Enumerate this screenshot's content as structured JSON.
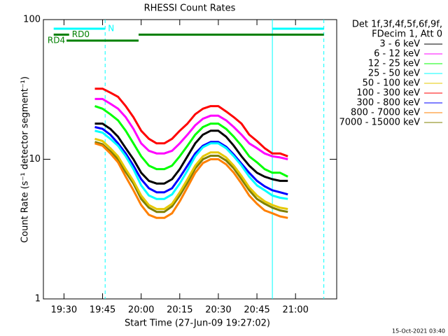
{
  "chart_data": {
    "type": "line",
    "title": "RHESSI Count Rates",
    "xlabel": "Start Time (27-Jun-09 19:27:02)",
    "ylabel": "Count Rate (s⁻¹ detector segment⁻¹)",
    "legend_header": [
      "Det 1f,3f,4f,5f,6f,9f,",
      "FDecim 1, Att 0"
    ],
    "footer": "15-Oct-2021 03:40",
    "log_y": true,
    "grid": false,
    "legend": "right",
    "xlim": [
      "19:22",
      "21:16"
    ],
    "xticks": [
      "19:30",
      "19:45",
      "20:00",
      "20:15",
      "20:30",
      "20:45",
      "21:00"
    ],
    "ylim": [
      1,
      100
    ],
    "yticks": [
      1,
      10,
      100
    ],
    "x": [
      "19:42",
      "19:45",
      "19:48",
      "19:51",
      "19:54",
      "19:57",
      "20:00",
      "20:03",
      "20:06",
      "20:09",
      "20:12",
      "20:15",
      "20:18",
      "20:21",
      "20:24",
      "20:27",
      "20:30",
      "20:33",
      "20:36",
      "20:39",
      "20:42",
      "20:45",
      "20:48",
      "20:51",
      "20:54",
      "20:57"
    ],
    "series": [
      {
        "name": "3 - 6 keV",
        "color": "#000000",
        "values": [
          18,
          18,
          16.5,
          14.5,
          12,
          10,
          8,
          7,
          6.7,
          6.7,
          7.2,
          8.5,
          10.5,
          13,
          15,
          16,
          16,
          14.5,
          12.5,
          10.5,
          9,
          8,
          7.5,
          7.2,
          7,
          7
        ]
      },
      {
        "name": "6 - 12 keV",
        "color": "#ff00ff",
        "values": [
          27,
          27,
          25,
          23,
          20,
          16.5,
          13,
          11.5,
          11,
          11,
          11.5,
          13,
          15,
          17.5,
          19.5,
          20.5,
          20.5,
          19,
          17,
          15,
          13,
          12,
          11,
          10.5,
          10.3,
          10
        ]
      },
      {
        "name": "12 - 25 keV",
        "color": "#00ff00",
        "values": [
          24,
          23,
          21,
          19,
          16,
          13,
          10.5,
          9,
          8.5,
          8.5,
          9,
          10.5,
          12.5,
          15,
          17,
          18,
          18,
          16.5,
          14.5,
          12.5,
          10.5,
          9.5,
          8.5,
          8,
          8,
          7.5
        ]
      },
      {
        "name": "25 - 50 keV",
        "color": "#00ffff",
        "values": [
          16,
          15.5,
          14,
          12.5,
          10.5,
          8.5,
          6.5,
          5.5,
          5.2,
          5.2,
          5.6,
          6.7,
          8.3,
          10.5,
          12.2,
          13,
          13,
          12,
          10.5,
          9,
          7.5,
          6.5,
          6,
          5.5,
          5.3,
          5.2
        ]
      },
      {
        "name": "50 - 100 keV",
        "color": "#e6c800",
        "values": [
          14,
          13.5,
          12,
          10.5,
          8.5,
          7,
          5.5,
          4.7,
          4.4,
          4.4,
          4.8,
          5.8,
          7.2,
          9,
          10.5,
          11.2,
          11.2,
          10.3,
          9,
          7.6,
          6.3,
          5.5,
          5,
          4.7,
          4.5,
          4.4
        ]
      },
      {
        "name": "100 - 300 keV",
        "color": "#ff0000",
        "values": [
          32,
          32,
          30,
          28,
          24,
          20,
          16,
          14,
          13,
          13,
          14,
          16,
          18,
          21,
          23,
          24,
          24,
          22,
          20,
          18,
          15,
          13.5,
          12,
          11,
          11,
          10.5
        ]
      },
      {
        "name": "300 - 800 keV",
        "color": "#0000ff",
        "values": [
          17,
          16.5,
          15,
          13,
          11,
          9,
          7.2,
          6.2,
          5.8,
          5.8,
          6.2,
          7.4,
          9,
          11,
          12.5,
          13.3,
          13.3,
          12.3,
          10.8,
          9.3,
          8,
          7,
          6.4,
          6,
          5.8,
          5.6
        ]
      },
      {
        "name": "800 - 7000 keV",
        "color": "#ff8000",
        "values": [
          13,
          12.5,
          11,
          9.5,
          7.5,
          6,
          4.7,
          4,
          3.8,
          3.8,
          4.1,
          5,
          6.3,
          8,
          9.4,
          10,
          10,
          9.2,
          8,
          6.7,
          5.5,
          4.8,
          4.3,
          4.1,
          3.9,
          3.8
        ]
      },
      {
        "name": "7000 - 15000 keV",
        "color": "#808000",
        "values": [
          13.3,
          12.8,
          11.4,
          10,
          8.1,
          6.7,
          5.2,
          4.5,
          4.2,
          4.2,
          4.6,
          5.5,
          6.8,
          8.6,
          10,
          10.6,
          10.6,
          9.8,
          8.6,
          7.2,
          6,
          5.2,
          4.8,
          4.5,
          4.3,
          4.2
        ]
      }
    ],
    "flag_bars": [
      {
        "row": 0,
        "color": "#00ffff",
        "start": "19:26",
        "end": "19:46",
        "label": "N"
      },
      {
        "row": 0,
        "color": "#00ffff",
        "start": "20:51",
        "end": "21:11"
      },
      {
        "row": 1,
        "color": "#008000",
        "start": "19:26",
        "end": "19:32",
        "label": "RD0"
      },
      {
        "row": 1,
        "color": "#008000",
        "start": "19:59",
        "end": "21:11"
      },
      {
        "row": 2,
        "color": "#008000",
        "start": "19:31",
        "end": "19:59",
        "label": "RD4"
      }
    ],
    "vlines": [
      {
        "x": "19:46",
        "color": "#00ffff",
        "style": "dashed"
      },
      {
        "x": "20:51",
        "color": "#00ffff",
        "style": "solid"
      },
      {
        "x": "21:11",
        "color": "#00ffff",
        "style": "dashed"
      }
    ]
  }
}
